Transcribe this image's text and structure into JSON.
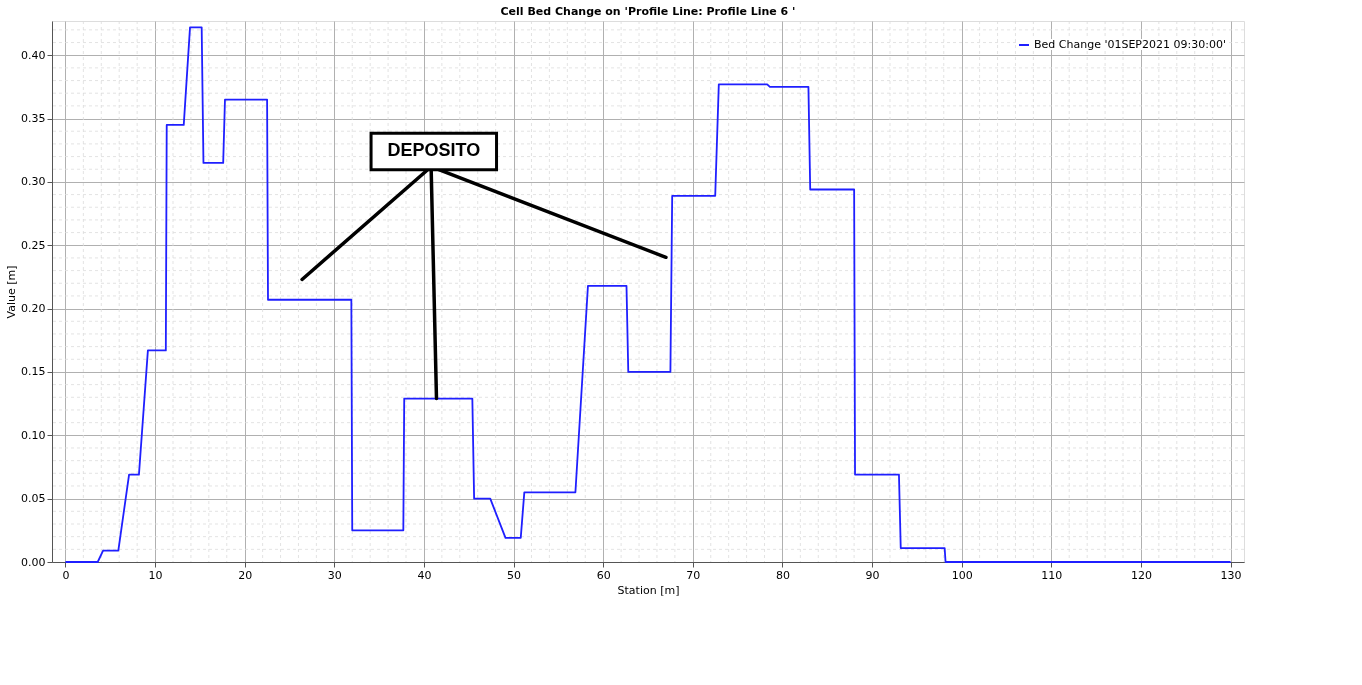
{
  "chart_data": {
    "type": "line",
    "title": "Cell Bed Change on 'Profile Line: Profile Line 6 '",
    "xlabel": "Station [m]",
    "ylabel": "Value [m]",
    "series": [
      {
        "name": "Bed Change '01SEP2021 09:30:00'",
        "color": "#1f1fff",
        "x": [
          0,
          3.6,
          4.2,
          5.9,
          7.1,
          8.2,
          9.2,
          11.2,
          11.3,
          13.2,
          13.9,
          15.2,
          15.4,
          17.6,
          17.8,
          22.5,
          22.6,
          31.9,
          32.0,
          37.7,
          37.8,
          45.4,
          45.6,
          47.4,
          49.1,
          50.8,
          51.2,
          56.9,
          58.3,
          62.6,
          62.8,
          67.5,
          67.7,
          72.5,
          72.9,
          78.3,
          78.6,
          82.9,
          83.1,
          88.0,
          88.1,
          93.0,
          93.2,
          98.1,
          98.2,
          130
        ],
        "values": [
          0,
          0,
          0.009,
          0.009,
          0.069,
          0.069,
          0.167,
          0.167,
          0.345,
          0.345,
          0.422,
          0.422,
          0.315,
          0.315,
          0.365,
          0.365,
          0.207,
          0.207,
          0.025,
          0.025,
          0.129,
          0.129,
          0.05,
          0.05,
          0.019,
          0.019,
          0.055,
          0.055,
          0.218,
          0.218,
          0.15,
          0.15,
          0.289,
          0.289,
          0.377,
          0.377,
          0.375,
          0.375,
          0.294,
          0.294,
          0.069,
          0.069,
          0.011,
          0.011,
          0,
          0
        ]
      }
    ],
    "xlim": [
      -1.5,
      131.5
    ],
    "ylim": [
      0,
      0.427
    ],
    "xticks": [
      0,
      10,
      20,
      30,
      40,
      50,
      60,
      70,
      80,
      90,
      100,
      110,
      120,
      130
    ],
    "yticks": [
      {
        "value": 0,
        "label": "0.00"
      },
      {
        "value": 0.05,
        "label": "0.05"
      },
      {
        "value": 0.1,
        "label": "0.10"
      },
      {
        "value": 0.15,
        "label": "0.15"
      },
      {
        "value": 0.2,
        "label": "0.20"
      },
      {
        "value": 0.25,
        "label": "0.25"
      },
      {
        "value": 0.3,
        "label": "0.30"
      },
      {
        "value": 0.35,
        "label": "0.35"
      },
      {
        "value": 0.4,
        "label": "0.40"
      }
    ],
    "annotations": [
      {
        "text": "DEPOSITO",
        "x": 41.4,
        "y": 0.129
      }
    ],
    "grid": true,
    "legend": "top right",
    "marker": "none",
    "line_style": "solid"
  }
}
